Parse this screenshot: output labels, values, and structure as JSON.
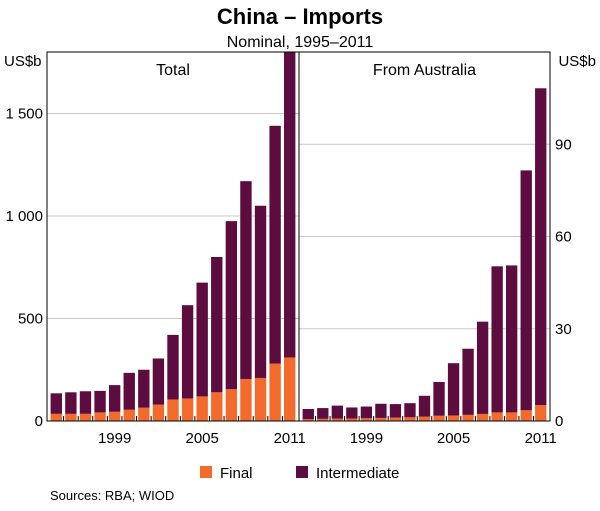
{
  "title": "China – Imports",
  "subtitle": "Nominal, 1995–2011",
  "units": {
    "left": "US$b",
    "right": "US$b"
  },
  "source": "Sources:   RBA; WIOD",
  "colors": {
    "final": "#f26b2d",
    "intermediate": "#5d0c40"
  },
  "chart_data": [
    {
      "type": "bar",
      "stacked": true,
      "title": "Total",
      "x": [
        1995,
        1996,
        1997,
        1998,
        1999,
        2000,
        2001,
        2002,
        2003,
        2004,
        2005,
        2006,
        2007,
        2008,
        2009,
        2010,
        2011
      ],
      "ylim": [
        0,
        1800
      ],
      "yticks": [
        0,
        500,
        1000,
        1500
      ],
      "ytick_labels": [
        "0",
        "500",
        "1 000",
        "1 500"
      ],
      "xtick_labels": [
        "1999",
        "2005",
        "2011"
      ],
      "series": [
        {
          "name": "Final",
          "values": [
            35,
            35,
            35,
            42,
            45,
            55,
            65,
            80,
            105,
            110,
            120,
            140,
            155,
            205,
            210,
            280,
            310
          ]
        },
        {
          "name": "Intermediate",
          "values": [
            100,
            105,
            110,
            105,
            130,
            180,
            185,
            225,
            315,
            455,
            555,
            660,
            820,
            965,
            840,
            1160,
            1490
          ]
        }
      ],
      "legend": "bottom",
      "grid": true
    },
    {
      "type": "bar",
      "stacked": true,
      "title": "From Australia",
      "x": [
        1995,
        1996,
        1997,
        1998,
        1999,
        2000,
        2001,
        2002,
        2003,
        2004,
        2005,
        2006,
        2007,
        2008,
        2009,
        2010,
        2011
      ],
      "ylim": [
        0,
        120
      ],
      "yticks": [
        0,
        30,
        60,
        90
      ],
      "ytick_labels": [
        "0",
        "30",
        "60",
        "90"
      ],
      "xtick_labels": [
        "1999",
        "2005",
        "2011"
      ],
      "series": [
        {
          "name": "Final",
          "values": [
            0.6,
            0.7,
            0.8,
            0.8,
            0.9,
            1.0,
            1.1,
            1.2,
            1.4,
            1.7,
            1.8,
            2.0,
            2.3,
            2.8,
            2.8,
            3.5,
            5.2
          ]
        },
        {
          "name": "Intermediate",
          "values": [
            3.3,
            3.5,
            4.2,
            3.6,
            3.8,
            4.6,
            4.4,
            4.6,
            6.8,
            11.0,
            17.0,
            21.5,
            30.0,
            47.5,
            47.8,
            78.0,
            103.0
          ]
        }
      ],
      "legend": "bottom",
      "grid": true
    }
  ],
  "legend": [
    {
      "label": "Final",
      "color": "#f26b2d"
    },
    {
      "label": "Intermediate",
      "color": "#5d0c40"
    }
  ]
}
